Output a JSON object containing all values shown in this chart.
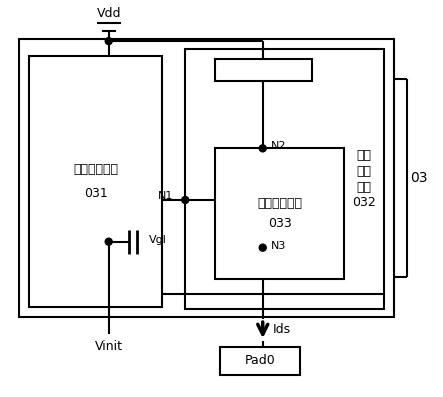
{
  "fig_width": 4.43,
  "fig_height": 3.97,
  "bg_color": "#ffffff",
  "line_color": "#000000",
  "label_circuit1_line1": "第一测试电路",
  "label_circuit1_line2": "031",
  "label_circuit3_line1": "第三测试电路",
  "label_circuit3_line2": "033",
  "label_circuit2_line1": "第二",
  "label_circuit2_line2": "测试",
  "label_circuit2_line3": "电路",
  "label_circuit2_line4": "032",
  "label_03": "03",
  "label_pad0": "Pad0",
  "label_vdd": "Vdd",
  "label_vinit": "Vinit",
  "label_vgl": "Vgl",
  "label_ids": "Ids",
  "label_n1": "N1",
  "label_n2": "N2",
  "label_n3": "N3",
  "font_size_main": 9,
  "font_size_node": 8,
  "font_size_03": 10
}
